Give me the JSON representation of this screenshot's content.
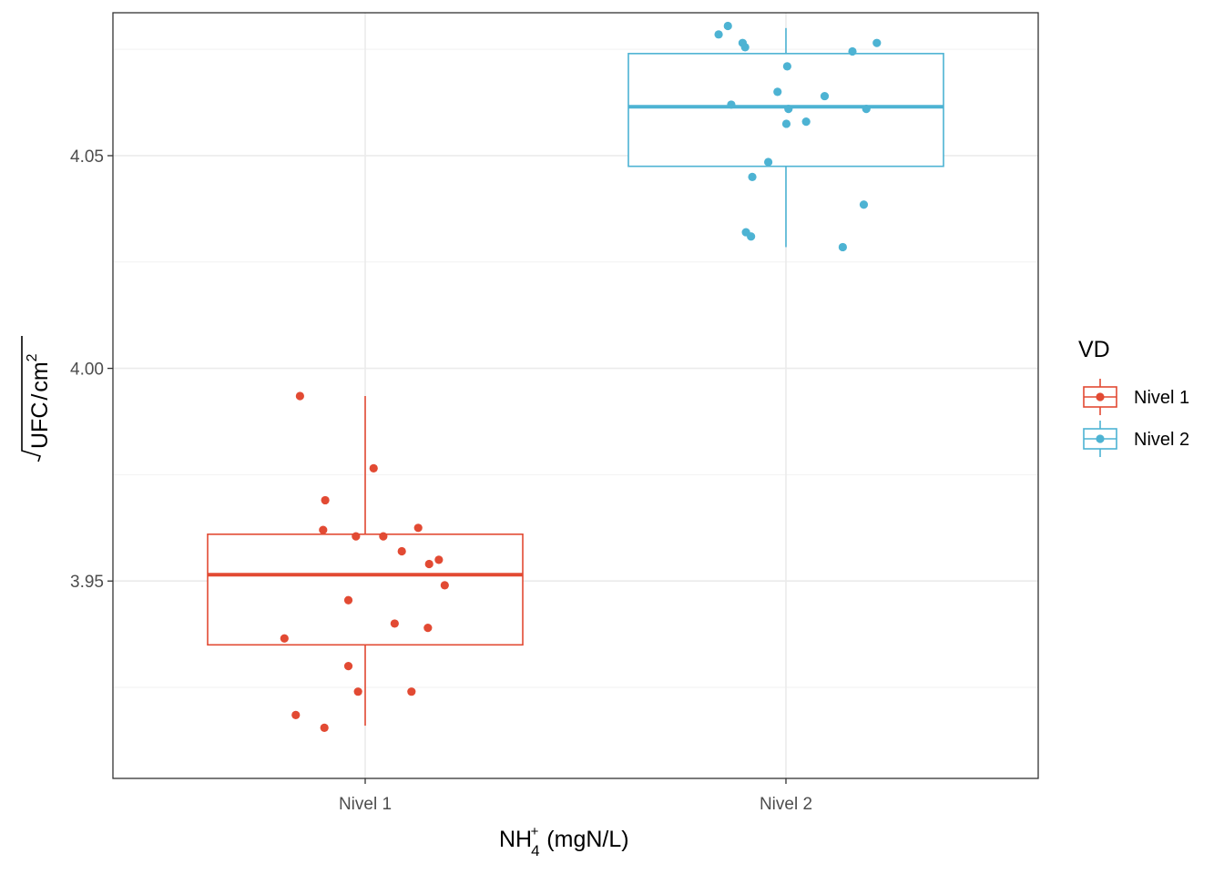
{
  "chart_data": {
    "type": "boxplot",
    "xlabel_main": "NH",
    "xlabel_sub": "4",
    "xlabel_sup": "+",
    "xlabel_rest": " (mgN/L)",
    "ylabel_radicand": "UFC",
    "ylabel_slash": "/",
    "ylabel_den": "cm",
    "ylabel_exp": "2",
    "categories": [
      "Nivel 1",
      "Nivel 2"
    ],
    "ylim": [
      3.9036,
      4.0836
    ],
    "yticks": [
      {
        "value": 3.95,
        "label": "3.95"
      },
      {
        "value": 4.0,
        "label": "4.00"
      },
      {
        "value": 4.05,
        "label": "4.05"
      }
    ],
    "grid": true,
    "legend": {
      "title": "VD",
      "position": "right",
      "entries": [
        "Nivel 1",
        "Nivel 2"
      ]
    },
    "series": [
      {
        "name": "Nivel 1",
        "color": "#e24a33",
        "box": {
          "min": 3.916,
          "q1": 3.935,
          "median": 3.9515,
          "q3": 3.961,
          "max": 3.9935
        },
        "points": [
          {
            "jitter": -0.155,
            "value": 3.9935
          },
          {
            "jitter": 0.02,
            "value": 3.9765
          },
          {
            "jitter": -0.095,
            "value": 3.969
          },
          {
            "jitter": -0.1,
            "value": 3.962
          },
          {
            "jitter": -0.022,
            "value": 3.9605
          },
          {
            "jitter": 0.043,
            "value": 3.9605
          },
          {
            "jitter": 0.126,
            "value": 3.9625
          },
          {
            "jitter": 0.087,
            "value": 3.957
          },
          {
            "jitter": 0.175,
            "value": 3.955
          },
          {
            "jitter": 0.152,
            "value": 3.954
          },
          {
            "jitter": 0.189,
            "value": 3.949
          },
          {
            "jitter": -0.04,
            "value": 3.9455
          },
          {
            "jitter": 0.07,
            "value": 3.94
          },
          {
            "jitter": 0.149,
            "value": 3.939
          },
          {
            "jitter": -0.192,
            "value": 3.9365
          },
          {
            "jitter": -0.04,
            "value": 3.93
          },
          {
            "jitter": -0.017,
            "value": 3.924
          },
          {
            "jitter": 0.11,
            "value": 3.924
          },
          {
            "jitter": -0.165,
            "value": 3.9185
          },
          {
            "jitter": -0.097,
            "value": 3.9155
          }
        ]
      },
      {
        "name": "Nivel 2",
        "color": "#4db3d3",
        "box": {
          "min": 4.0285,
          "q1": 4.0475,
          "median": 4.0615,
          "q3": 4.074,
          "max": 4.08
        },
        "points": [
          {
            "jitter": -0.16,
            "value": 4.0785
          },
          {
            "jitter": -0.138,
            "value": 4.0805
          },
          {
            "jitter": -0.103,
            "value": 4.0765
          },
          {
            "jitter": -0.097,
            "value": 4.0755
          },
          {
            "jitter": 0.158,
            "value": 4.0745
          },
          {
            "jitter": 0.216,
            "value": 4.0765
          },
          {
            "jitter": 0.003,
            "value": 4.071
          },
          {
            "jitter": -0.02,
            "value": 4.065
          },
          {
            "jitter": 0.092,
            "value": 4.064
          },
          {
            "jitter": -0.13,
            "value": 4.062
          },
          {
            "jitter": 0.006,
            "value": 4.061
          },
          {
            "jitter": 0.191,
            "value": 4.061
          },
          {
            "jitter": 0.001,
            "value": 4.0575
          },
          {
            "jitter": 0.048,
            "value": 4.058
          },
          {
            "jitter": -0.042,
            "value": 4.0485
          },
          {
            "jitter": -0.08,
            "value": 4.045
          },
          {
            "jitter": 0.185,
            "value": 4.0385
          },
          {
            "jitter": -0.095,
            "value": 4.032
          },
          {
            "jitter": -0.083,
            "value": 4.031
          },
          {
            "jitter": 0.135,
            "value": 4.0285
          }
        ]
      }
    ]
  }
}
